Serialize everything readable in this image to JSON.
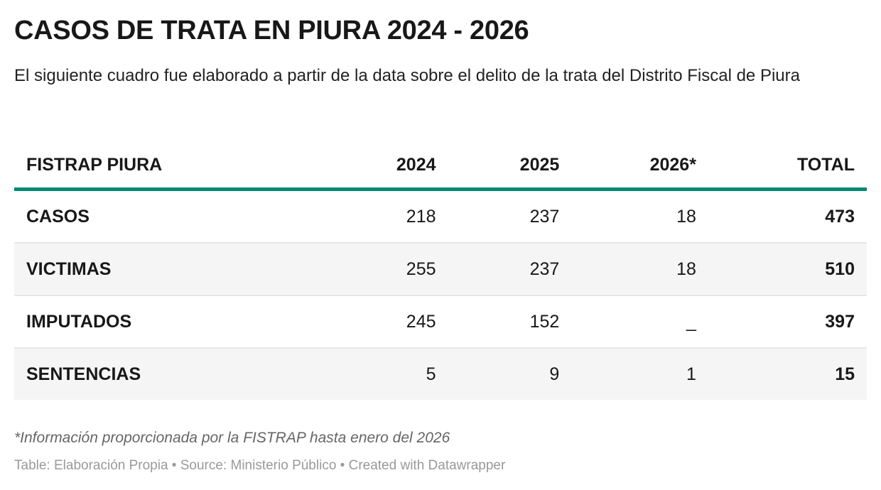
{
  "header": {
    "title": "CASOS DE TRATA EN PIURA 2024 - 2026",
    "subtitle": "El siguiente cuadro fue elaborado a partir de la data sobre el delito de la trata del Distrito Fiscal de Piura"
  },
  "chart_data": {
    "type": "table",
    "columns": [
      "FISTRAP PIURA",
      "2024",
      "2025",
      "2026*",
      "TOTAL"
    ],
    "rows": [
      [
        "CASOS",
        "218",
        "237",
        "18",
        "473"
      ],
      [
        "VICTIMAS",
        "255",
        "237",
        "18",
        "510"
      ],
      [
        "IMPUTADOS",
        "245",
        "152",
        "_",
        "397"
      ],
      [
        "SENTENCIAS",
        "5",
        "9",
        "1",
        "15"
      ]
    ],
    "header_rule_color": "#008a70"
  },
  "footer": {
    "note": "*Información proporcionada por la FISTRAP hasta enero del 2026",
    "credits": "Table: Elaboración Propia • Source: Ministerio Público • Created with Datawrapper"
  }
}
